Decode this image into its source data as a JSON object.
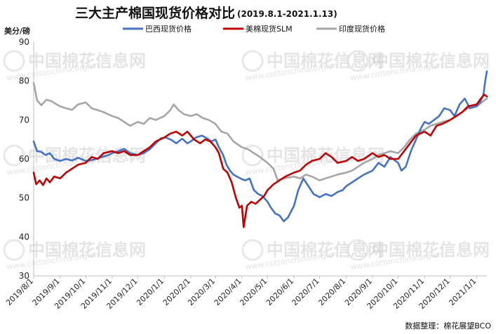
{
  "chart_data": {
    "type": "line",
    "title": "三大主产棉国现货价格对比",
    "subtitle": "(2019.8.1-2021.1.13)",
    "ylabel": "美分/磅",
    "ylim": [
      30,
      90
    ],
    "yticks": [
      "30",
      "40",
      "50",
      "60",
      "70",
      "80",
      "90"
    ],
    "grid": false,
    "legend_position": "top",
    "x_range": [
      "2019-08-01",
      "2021-01-13"
    ],
    "xticks": [
      {
        "label": "2019/8/1",
        "date": "2019-08-01"
      },
      {
        "label": "2019/9/1",
        "date": "2019-09-01"
      },
      {
        "label": "2019/10/1",
        "date": "2019-10-01"
      },
      {
        "label": "2019/11/1",
        "date": "2019-11-01"
      },
      {
        "label": "2019/12/1",
        "date": "2019-12-01"
      },
      {
        "label": "2020/1/1",
        "date": "2020-01-01"
      },
      {
        "label": "2020/2/1",
        "date": "2020-02-01"
      },
      {
        "label": "2020/3/1",
        "date": "2020-03-01"
      },
      {
        "label": "2020/4/1",
        "date": "2020-04-01"
      },
      {
        "label": "2020/5/1",
        "date": "2020-05-01"
      },
      {
        "label": "2020/6/1",
        "date": "2020-06-01"
      },
      {
        "label": "2020/7/1",
        "date": "2020-07-01"
      },
      {
        "label": "2020/8/1",
        "date": "2020-08-01"
      },
      {
        "label": "2020/9/1",
        "date": "2020-09-01"
      },
      {
        "label": "2020/10/1",
        "date": "2020-10-01"
      },
      {
        "label": "2020/11/1",
        "date": "2020-11-01"
      },
      {
        "label": "2020/12/1",
        "date": "2020-12-01"
      },
      {
        "label": "2021/1/1",
        "date": "2021-01-01"
      }
    ],
    "series": [
      {
        "name": "巴西现货价格",
        "color": "#4472c4",
        "points": [
          [
            "2019-08-01",
            64.5
          ],
          [
            "2019-08-05",
            62.0
          ],
          [
            "2019-08-10",
            61.8
          ],
          [
            "2019-08-15",
            61.0
          ],
          [
            "2019-08-20",
            61.5
          ],
          [
            "2019-08-25",
            60.0
          ],
          [
            "2019-09-01",
            59.5
          ],
          [
            "2019-09-08",
            60.0
          ],
          [
            "2019-09-15",
            59.6
          ],
          [
            "2019-09-22",
            60.3
          ],
          [
            "2019-10-01",
            59.5
          ],
          [
            "2019-10-10",
            59.8
          ],
          [
            "2019-10-20",
            60.5
          ],
          [
            "2019-10-28",
            61.0
          ],
          [
            "2019-11-01",
            61.5
          ],
          [
            "2019-11-08",
            62.0
          ],
          [
            "2019-11-15",
            62.6
          ],
          [
            "2019-11-22",
            61.5
          ],
          [
            "2019-12-01",
            61.0
          ],
          [
            "2019-12-08",
            61.5
          ],
          [
            "2019-12-15",
            62.5
          ],
          [
            "2019-12-22",
            64.0
          ],
          [
            "2019-12-28",
            65.3
          ],
          [
            "2020-01-03",
            65.5
          ],
          [
            "2020-01-10",
            64.8
          ],
          [
            "2020-01-15",
            64.0
          ],
          [
            "2020-01-22",
            65.2
          ],
          [
            "2020-01-28",
            64.0
          ],
          [
            "2020-02-01",
            64.5
          ],
          [
            "2020-02-07",
            65.5
          ],
          [
            "2020-02-14",
            66.0
          ],
          [
            "2020-02-21",
            65.2
          ],
          [
            "2020-02-25",
            64.5
          ],
          [
            "2020-03-01",
            65.0
          ],
          [
            "2020-03-05",
            63.0
          ],
          [
            "2020-03-10",
            61.0
          ],
          [
            "2020-03-14",
            58.5
          ],
          [
            "2020-03-18",
            57.0
          ],
          [
            "2020-03-22",
            56.0
          ],
          [
            "2020-03-26",
            55.5
          ],
          [
            "2020-04-01",
            54.8
          ],
          [
            "2020-04-05",
            54.5
          ],
          [
            "2020-04-10",
            55.0
          ],
          [
            "2020-04-15",
            52.0
          ],
          [
            "2020-04-20",
            51.0
          ],
          [
            "2020-04-25",
            50.5
          ],
          [
            "2020-05-01",
            49.0
          ],
          [
            "2020-05-05",
            47.5
          ],
          [
            "2020-05-10",
            46.0
          ],
          [
            "2020-05-15",
            45.5
          ],
          [
            "2020-05-20",
            44.0
          ],
          [
            "2020-05-25",
            45.0
          ],
          [
            "2020-06-01",
            48.0
          ],
          [
            "2020-06-06",
            52.0
          ],
          [
            "2020-06-12",
            55.0
          ],
          [
            "2020-06-18",
            53.0
          ],
          [
            "2020-06-24",
            51.0
          ],
          [
            "2020-07-01",
            50.2
          ],
          [
            "2020-07-08",
            51.0
          ],
          [
            "2020-07-15",
            50.5
          ],
          [
            "2020-07-22",
            51.5
          ],
          [
            "2020-07-28",
            52.0
          ],
          [
            "2020-08-01",
            53.0
          ],
          [
            "2020-08-08",
            54.0
          ],
          [
            "2020-08-15",
            55.0
          ],
          [
            "2020-08-22",
            56.0
          ],
          [
            "2020-09-01",
            57.0
          ],
          [
            "2020-09-08",
            59.0
          ],
          [
            "2020-09-15",
            58.0
          ],
          [
            "2020-09-22",
            60.5
          ],
          [
            "2020-10-01",
            59.0
          ],
          [
            "2020-10-05",
            57.0
          ],
          [
            "2020-10-10",
            58.0
          ],
          [
            "2020-10-16",
            62.0
          ],
          [
            "2020-10-22",
            65.0
          ],
          [
            "2020-10-28",
            68.0
          ],
          [
            "2020-11-01",
            69.5
          ],
          [
            "2020-11-06",
            69.0
          ],
          [
            "2020-11-12",
            70.0
          ],
          [
            "2020-11-18",
            71.0
          ],
          [
            "2020-11-24",
            73.0
          ],
          [
            "2020-12-01",
            72.5
          ],
          [
            "2020-12-06",
            71.0
          ],
          [
            "2020-12-12",
            74.0
          ],
          [
            "2020-12-18",
            75.5
          ],
          [
            "2020-12-24",
            73.0
          ],
          [
            "2021-01-01",
            73.5
          ],
          [
            "2021-01-05",
            74.5
          ],
          [
            "2021-01-09",
            76.5
          ],
          [
            "2021-01-11",
            80.0
          ],
          [
            "2021-01-13",
            82.5
          ]
        ]
      },
      {
        "name": "美棉现货SLM",
        "color": "#c00000",
        "points": [
          [
            "2019-08-01",
            56.5
          ],
          [
            "2019-08-04",
            53.5
          ],
          [
            "2019-08-08",
            54.5
          ],
          [
            "2019-08-12",
            53.3
          ],
          [
            "2019-08-16",
            55.0
          ],
          [
            "2019-08-20",
            54.0
          ],
          [
            "2019-08-25",
            55.5
          ],
          [
            "2019-09-01",
            55.0
          ],
          [
            "2019-09-08",
            56.5
          ],
          [
            "2019-09-15",
            57.5
          ],
          [
            "2019-09-22",
            58.5
          ],
          [
            "2019-10-01",
            59.0
          ],
          [
            "2019-10-08",
            60.5
          ],
          [
            "2019-10-15",
            60.0
          ],
          [
            "2019-10-22",
            61.5
          ],
          [
            "2019-11-01",
            62.0
          ],
          [
            "2019-11-08",
            61.5
          ],
          [
            "2019-11-15",
            62.0
          ],
          [
            "2019-11-22",
            61.0
          ],
          [
            "2019-12-01",
            61.0
          ],
          [
            "2019-12-08",
            62.0
          ],
          [
            "2019-12-15",
            63.0
          ],
          [
            "2019-12-22",
            64.5
          ],
          [
            "2020-01-01",
            65.5
          ],
          [
            "2020-01-08",
            66.5
          ],
          [
            "2020-01-15",
            67.0
          ],
          [
            "2020-01-22",
            66.0
          ],
          [
            "2020-01-28",
            67.0
          ],
          [
            "2020-02-05",
            65.0
          ],
          [
            "2020-02-12",
            64.0
          ],
          [
            "2020-02-18",
            65.0
          ],
          [
            "2020-02-24",
            64.5
          ],
          [
            "2020-03-01",
            63.0
          ],
          [
            "2020-03-05",
            61.5
          ],
          [
            "2020-03-10",
            57.5
          ],
          [
            "2020-03-15",
            56.5
          ],
          [
            "2020-03-20",
            54.0
          ],
          [
            "2020-03-25",
            50.0
          ],
          [
            "2020-03-29",
            47.5
          ],
          [
            "2020-04-01",
            48.0
          ],
          [
            "2020-04-03",
            42.5
          ],
          [
            "2020-04-07",
            48.0
          ],
          [
            "2020-04-12",
            49.0
          ],
          [
            "2020-04-17",
            48.5
          ],
          [
            "2020-04-22",
            49.5
          ],
          [
            "2020-04-27",
            50.5
          ],
          [
            "2020-05-01",
            52.0
          ],
          [
            "2020-05-08",
            53.5
          ],
          [
            "2020-05-15",
            54.5
          ],
          [
            "2020-05-22",
            55.5
          ],
          [
            "2020-06-01",
            56.5
          ],
          [
            "2020-06-08",
            57.0
          ],
          [
            "2020-06-15",
            58.5
          ],
          [
            "2020-06-22",
            59.5
          ],
          [
            "2020-07-01",
            60.0
          ],
          [
            "2020-07-08",
            61.5
          ],
          [
            "2020-07-15",
            60.5
          ],
          [
            "2020-07-22",
            59.0
          ],
          [
            "2020-08-01",
            59.5
          ],
          [
            "2020-08-08",
            60.5
          ],
          [
            "2020-08-15",
            59.5
          ],
          [
            "2020-08-22",
            60.0
          ],
          [
            "2020-09-01",
            61.5
          ],
          [
            "2020-09-08",
            60.5
          ],
          [
            "2020-09-15",
            61.0
          ],
          [
            "2020-09-22",
            60.0
          ],
          [
            "2020-10-01",
            60.0
          ],
          [
            "2020-10-08",
            62.0
          ],
          [
            "2020-10-15",
            64.0
          ],
          [
            "2020-10-22",
            66.0
          ],
          [
            "2020-11-01",
            67.0
          ],
          [
            "2020-11-08",
            66.0
          ],
          [
            "2020-11-15",
            68.5
          ],
          [
            "2020-11-22",
            69.0
          ],
          [
            "2020-12-01",
            70.0
          ],
          [
            "2020-12-08",
            71.0
          ],
          [
            "2020-12-15",
            72.0
          ],
          [
            "2020-12-22",
            73.5
          ],
          [
            "2021-01-01",
            74.0
          ],
          [
            "2021-01-06",
            75.5
          ],
          [
            "2021-01-10",
            76.5
          ],
          [
            "2021-01-13",
            76.0
          ]
        ]
      },
      {
        "name": "印度现货价格",
        "color": "#a6a6a6",
        "points": [
          [
            "2019-08-01",
            79.5
          ],
          [
            "2019-08-05",
            75.0
          ],
          [
            "2019-08-10",
            73.8
          ],
          [
            "2019-08-16",
            75.2
          ],
          [
            "2019-08-22",
            74.8
          ],
          [
            "2019-08-28",
            74.0
          ],
          [
            "2019-09-01",
            73.5
          ],
          [
            "2019-09-08",
            73.0
          ],
          [
            "2019-09-15",
            72.6
          ],
          [
            "2019-09-22",
            74.0
          ],
          [
            "2019-10-01",
            74.5
          ],
          [
            "2019-10-08",
            73.0
          ],
          [
            "2019-10-15",
            72.5
          ],
          [
            "2019-10-22",
            72.0
          ],
          [
            "2019-11-01",
            71.0
          ],
          [
            "2019-11-08",
            70.5
          ],
          [
            "2019-11-15",
            69.5
          ],
          [
            "2019-11-22",
            68.5
          ],
          [
            "2019-12-01",
            69.5
          ],
          [
            "2019-12-08",
            69.0
          ],
          [
            "2019-12-15",
            70.5
          ],
          [
            "2019-12-22",
            70.0
          ],
          [
            "2020-01-01",
            71.0
          ],
          [
            "2020-01-08",
            72.5
          ],
          [
            "2020-01-12",
            74.0
          ],
          [
            "2020-01-18",
            72.5
          ],
          [
            "2020-01-24",
            71.5
          ],
          [
            "2020-02-01",
            71.0
          ],
          [
            "2020-02-08",
            71.5
          ],
          [
            "2020-02-15",
            70.5
          ],
          [
            "2020-02-22",
            70.0
          ],
          [
            "2020-03-01",
            69.0
          ],
          [
            "2020-03-08",
            67.0
          ],
          [
            "2020-03-15",
            66.5
          ],
          [
            "2020-03-22",
            64.5
          ],
          [
            "2020-04-01",
            63.0
          ],
          [
            "2020-04-08",
            62.5
          ],
          [
            "2020-04-15",
            61.5
          ],
          [
            "2020-04-22",
            60.5
          ],
          [
            "2020-05-01",
            59.0
          ],
          [
            "2020-05-08",
            57.5
          ],
          [
            "2020-05-13",
            54.5
          ],
          [
            "2020-05-20",
            55.0
          ],
          [
            "2020-06-01",
            55.5
          ],
          [
            "2020-06-08",
            55.0
          ],
          [
            "2020-06-15",
            56.0
          ],
          [
            "2020-06-22",
            55.5
          ],
          [
            "2020-07-01",
            54.5
          ],
          [
            "2020-07-08",
            55.0
          ],
          [
            "2020-07-15",
            55.5
          ],
          [
            "2020-07-22",
            56.0
          ],
          [
            "2020-08-01",
            56.5
          ],
          [
            "2020-08-08",
            57.0
          ],
          [
            "2020-08-15",
            58.0
          ],
          [
            "2020-08-22",
            59.0
          ],
          [
            "2020-09-01",
            60.0
          ],
          [
            "2020-09-08",
            61.0
          ],
          [
            "2020-09-15",
            61.5
          ],
          [
            "2020-09-22",
            62.0
          ],
          [
            "2020-10-01",
            61.5
          ],
          [
            "2020-10-08",
            63.0
          ],
          [
            "2020-10-15",
            65.0
          ],
          [
            "2020-10-22",
            66.5
          ],
          [
            "2020-11-01",
            67.5
          ],
          [
            "2020-11-08",
            68.5
          ],
          [
            "2020-11-15",
            69.0
          ],
          [
            "2020-11-22",
            69.5
          ],
          [
            "2020-12-01",
            70.0
          ],
          [
            "2020-12-08",
            71.0
          ],
          [
            "2020-12-15",
            72.0
          ],
          [
            "2020-12-22",
            73.0
          ],
          [
            "2021-01-01",
            73.5
          ],
          [
            "2021-01-07",
            74.5
          ],
          [
            "2021-01-13",
            75.5
          ]
        ]
      }
    ]
  },
  "source_note": "数据整理：棉花展望BCO",
  "watermark": {
    "text": "中国棉花信息网",
    "url": "www.cottonchina.org.cn"
  }
}
